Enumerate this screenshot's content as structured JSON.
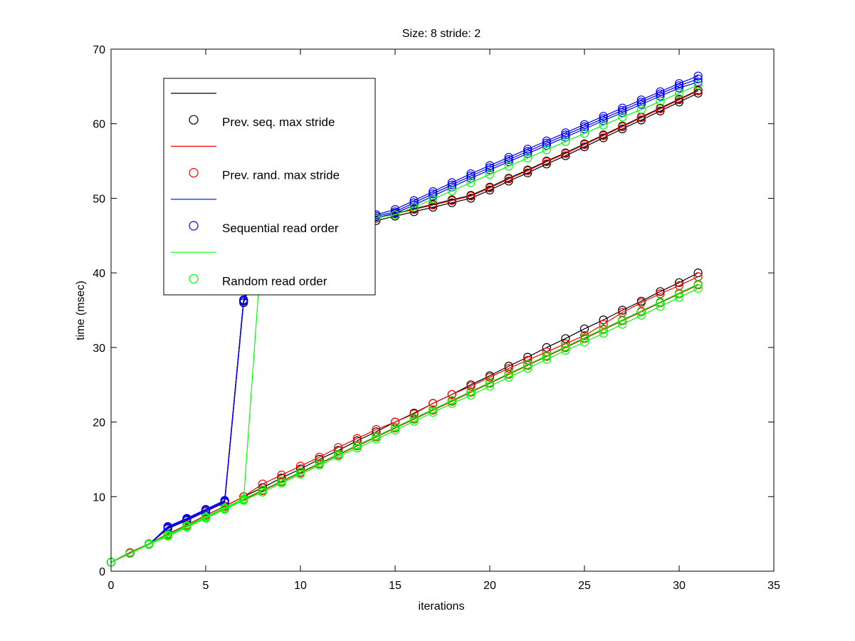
{
  "chart_data": {
    "type": "line",
    "title": "Size: 8 stride: 2",
    "xlabel": "iterations",
    "ylabel": "time (msec)",
    "xlim": [
      0,
      35
    ],
    "ylim": [
      0,
      70
    ],
    "xticks": [
      0,
      5,
      10,
      15,
      20,
      25,
      30,
      35
    ],
    "yticks": [
      0,
      10,
      20,
      30,
      40,
      50,
      60,
      70
    ],
    "grid": false,
    "legend_position": "top-left",
    "x": [
      0,
      1,
      2,
      3,
      4,
      5,
      6,
      7,
      8,
      9,
      10,
      11,
      12,
      13,
      14,
      15,
      16,
      17,
      18,
      19,
      20,
      21,
      22,
      23,
      24,
      25,
      26,
      27,
      28,
      29,
      30,
      31
    ],
    "legend": [
      {
        "name": "",
        "color": "#000000",
        "marker": "line"
      },
      {
        "name": "Prev. seq. max stride",
        "color": "#000000",
        "marker": "circle"
      },
      {
        "name": "",
        "color": "#ff0000",
        "marker": "line"
      },
      {
        "name": "Prev. rand. max stride",
        "color": "#ff0000",
        "marker": "circle"
      },
      {
        "name": "",
        "color": "#0000ff",
        "marker": "line"
      },
      {
        "name": "Sequential read order",
        "color": "#0000ff",
        "marker": "circle"
      },
      {
        "name": "",
        "color": "#00ff00",
        "marker": "line"
      },
      {
        "name": "Random read order",
        "color": "#00ff00",
        "marker": "circle"
      }
    ],
    "series": [
      {
        "color": "#000000",
        "values": [
          1.2,
          2.4,
          3.6,
          4.8,
          6.0,
          7.2,
          8.4,
          9.6,
          10.8,
          12.0,
          13.2,
          14.4,
          15.6,
          16.8,
          18.0,
          19.2,
          20.4,
          21.6,
          22.8,
          24.0,
          25.2,
          26.4,
          27.6,
          28.8,
          30.0,
          31.2,
          32.4,
          33.6,
          34.8,
          36.0,
          37.2,
          38.4
        ]
      },
      {
        "color": "#000000",
        "values": [
          1.2,
          2.5,
          3.7,
          5.0,
          6.2,
          7.5,
          8.7,
          10.0,
          11.2,
          12.5,
          13.7,
          15.0,
          16.2,
          17.5,
          18.7,
          20.0,
          21.2,
          22.5,
          23.7,
          25.0,
          26.2,
          27.5,
          28.7,
          30.0,
          31.2,
          32.5,
          33.7,
          35.0,
          36.2,
          37.5,
          38.7,
          40.0
        ]
      },
      {
        "color": "#000000",
        "values": [
          1.2,
          2.4,
          3.6,
          5.9,
          7.0,
          8.2,
          9.4,
          36.3,
          43.0,
          44.0,
          44.8,
          45.7,
          46.2,
          46.8,
          47.4,
          48.0,
          48.6,
          49.2,
          49.8,
          50.4,
          51.5,
          52.7,
          53.8,
          55.0,
          56.1,
          57.3,
          58.5,
          59.7,
          60.9,
          62.1,
          63.3,
          64.5
        ]
      },
      {
        "color": "#000000",
        "values": [
          1.2,
          2.4,
          3.6,
          5.7,
          6.8,
          8.0,
          9.2,
          36.0,
          42.7,
          43.7,
          44.5,
          45.3,
          45.9,
          46.4,
          47.0,
          47.6,
          48.2,
          48.8,
          49.4,
          50.0,
          51.1,
          52.3,
          53.4,
          54.6,
          55.7,
          56.9,
          58.1,
          59.3,
          60.5,
          61.7,
          62.9,
          64.1
        ]
      },
      {
        "color": "#ff0000",
        "values": [
          1.2,
          2.4,
          3.6,
          4.8,
          6.0,
          7.2,
          8.4,
          9.6,
          10.8,
          12.0,
          13.2,
          14.4,
          15.6,
          16.8,
          18.0,
          19.2,
          20.4,
          21.6,
          22.8,
          24.0,
          25.2,
          26.4,
          27.6,
          28.8,
          30.0,
          31.2,
          32.4,
          33.6,
          34.8,
          36.0,
          37.2,
          38.4
        ]
      },
      {
        "color": "#ff0000",
        "values": [
          1.2,
          2.5,
          3.7,
          5.0,
          6.2,
          7.5,
          8.7,
          10.0,
          11.7,
          12.9,
          14.1,
          15.3,
          16.6,
          17.8,
          19.0,
          20.0,
          21.1,
          22.5,
          23.7,
          24.8,
          26.0,
          27.2,
          28.3,
          29.4,
          30.5,
          31.6,
          33.1,
          34.7,
          36.0,
          37.2,
          38.3,
          39.5
        ]
      },
      {
        "color": "#ff0000",
        "values": [
          1.2,
          2.4,
          3.6,
          5.8,
          6.9,
          8.1,
          9.3,
          36.2,
          42.9,
          43.9,
          44.7,
          45.6,
          46.1,
          46.7,
          47.3,
          47.9,
          48.5,
          49.1,
          49.7,
          50.3,
          51.4,
          52.6,
          53.7,
          54.9,
          56.0,
          57.2,
          58.4,
          59.6,
          60.8,
          62.0,
          63.2,
          64.4
        ]
      },
      {
        "color": "#0000ff",
        "values": [
          1.2,
          2.4,
          3.6,
          6.0,
          7.1,
          8.3,
          9.5,
          36.4,
          43.2,
          44.3,
          45.1,
          46.0,
          46.6,
          47.2,
          47.8,
          48.5,
          49.7,
          50.9,
          52.1,
          53.3,
          54.4,
          55.5,
          56.6,
          57.7,
          58.8,
          59.9,
          61.0,
          62.1,
          63.2,
          64.3,
          65.4,
          66.4
        ]
      },
      {
        "color": "#0000ff",
        "values": [
          1.2,
          2.4,
          3.6,
          5.9,
          7.0,
          8.2,
          9.4,
          36.3,
          43.0,
          44.1,
          44.9,
          45.8,
          46.4,
          47.0,
          47.6,
          48.2,
          49.4,
          50.6,
          51.8,
          53.0,
          54.1,
          55.2,
          56.3,
          57.4,
          58.5,
          59.6,
          60.7,
          61.8,
          62.9,
          64.0,
          65.1,
          66.0
        ]
      },
      {
        "color": "#0000ff",
        "values": [
          1.2,
          2.4,
          3.6,
          5.8,
          6.9,
          8.0,
          9.3,
          36.2,
          42.8,
          43.9,
          44.7,
          45.6,
          46.2,
          46.8,
          47.4,
          48.0,
          49.1,
          50.3,
          51.5,
          52.7,
          53.8,
          54.9,
          56.0,
          57.1,
          58.2,
          59.3,
          60.4,
          61.5,
          62.6,
          63.7,
          64.8,
          65.6
        ]
      },
      {
        "color": "#00ff00",
        "values": [
          1.2,
          2.4,
          3.6,
          4.7,
          5.9,
          7.1,
          8.3,
          9.5,
          10.6,
          11.8,
          13.0,
          14.2,
          15.4,
          16.5,
          17.7,
          18.9,
          20.1,
          21.3,
          22.5,
          23.6,
          24.8,
          26.0,
          27.2,
          28.4,
          29.6,
          30.7,
          31.9,
          33.1,
          34.3,
          35.5,
          36.7,
          37.9
        ]
      },
      {
        "color": "#00ff00",
        "values": [
          1.2,
          2.4,
          3.7,
          4.9,
          6.1,
          7.3,
          8.5,
          9.7,
          10.9,
          12.1,
          13.3,
          14.5,
          15.7,
          16.9,
          18.1,
          19.3,
          20.5,
          21.7,
          22.9,
          24.1,
          25.3,
          26.5,
          27.7,
          28.9,
          30.1,
          31.3,
          32.5,
          33.7,
          34.9,
          36.1,
          37.3,
          38.5
        ]
      },
      {
        "color": "#00ff00",
        "values": [
          1.2,
          2.4,
          3.6,
          4.8,
          6.0,
          7.2,
          8.4,
          9.6,
          45.1,
          45.6,
          46.0,
          46.4,
          46.7,
          47.0,
          47.4,
          47.8,
          48.8,
          49.9,
          51.0,
          52.1,
          53.2,
          54.3,
          55.4,
          56.5,
          57.6,
          58.7,
          59.8,
          60.9,
          61.9,
          63.0,
          64.1,
          65.2
        ]
      }
    ]
  }
}
